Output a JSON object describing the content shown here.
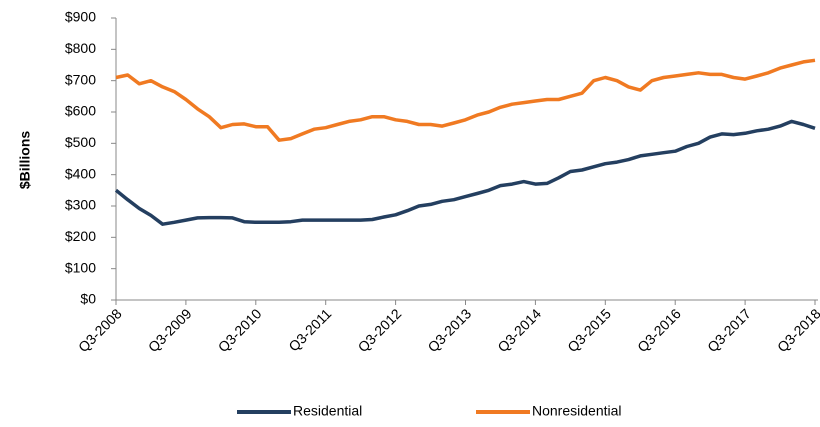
{
  "chart_data": {
    "type": "line",
    "y_label": "$Billions",
    "categories": [
      "Q3-2008",
      null,
      null,
      null,
      null,
      null,
      "Q3-2009",
      null,
      null,
      null,
      null,
      null,
      "Q3-2010",
      null,
      null,
      null,
      null,
      null,
      "Q3-2011",
      null,
      null,
      null,
      null,
      null,
      "Q3-2012",
      null,
      null,
      null,
      null,
      null,
      "Q3-2013",
      null,
      null,
      null,
      null,
      null,
      "Q3-2014",
      null,
      null,
      null,
      null,
      null,
      "Q3-2015",
      null,
      null,
      null,
      null,
      null,
      "Q3-2016",
      null,
      null,
      null,
      null,
      null,
      "Q3-2017",
      null,
      null,
      null,
      null,
      null,
      "Q3-2018"
    ],
    "series": [
      {
        "name": "Residential",
        "color": "#243f60",
        "values": [
          350,
          320,
          292,
          270,
          242,
          248,
          255,
          262,
          263,
          263,
          262,
          250,
          248,
          248,
          248,
          250,
          255,
          255,
          255,
          255,
          255,
          255,
          257,
          265,
          272,
          285,
          300,
          305,
          315,
          320,
          330,
          340,
          350,
          365,
          370,
          378,
          370,
          372,
          390,
          410,
          415,
          425,
          435,
          440,
          448,
          460,
          465,
          470,
          475,
          490,
          500,
          520,
          530,
          528,
          532,
          540,
          545,
          555,
          570,
          560,
          548
        ]
      },
      {
        "name": "Nonresidential",
        "color": "#f07a22",
        "values": [
          710,
          718,
          690,
          700,
          680,
          665,
          640,
          610,
          585,
          550,
          560,
          562,
          553,
          553,
          510,
          515,
          530,
          545,
          550,
          560,
          570,
          575,
          585,
          585,
          575,
          570,
          560,
          560,
          555,
          565,
          575,
          590,
          600,
          615,
          625,
          630,
          635,
          640,
          640,
          650,
          660,
          700,
          710,
          700,
          680,
          670,
          700,
          710,
          715,
          720,
          725,
          720,
          720,
          710,
          705,
          715,
          725,
          740,
          750,
          760,
          765
        ]
      }
    ],
    "ylim": [
      0,
      900
    ],
    "yticks": [
      {
        "value": 0,
        "label": "$0"
      },
      {
        "value": 100,
        "label": "$100"
      },
      {
        "value": 200,
        "label": "$200"
      },
      {
        "value": 300,
        "label": "$300"
      },
      {
        "value": 400,
        "label": "$400"
      },
      {
        "value": 500,
        "label": "$500"
      },
      {
        "value": 600,
        "label": "$600"
      },
      {
        "value": 700,
        "label": "$700"
      },
      {
        "value": 800,
        "label": "$800"
      },
      {
        "value": 900,
        "label": "$900"
      }
    ],
    "legend": "bottom"
  }
}
